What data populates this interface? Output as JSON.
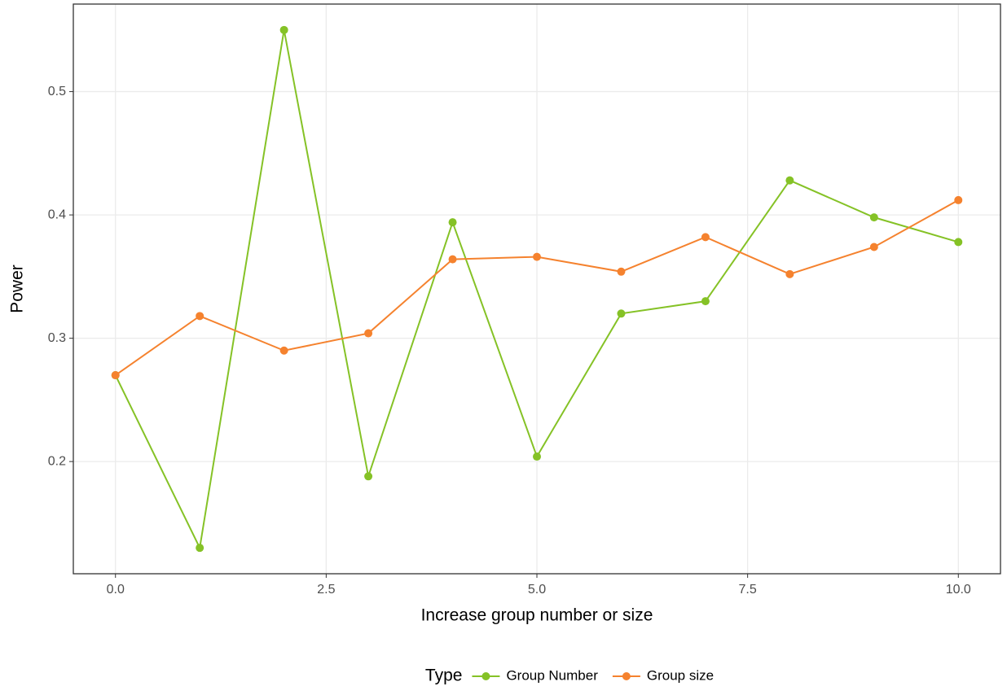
{
  "chart_data": {
    "type": "line",
    "x_label": "Increase group number or size",
    "y_label": "Power",
    "legend_title": "Type",
    "legend_position": "bottom",
    "grid": true,
    "x": [
      0,
      1,
      2,
      3,
      4,
      5,
      6,
      7,
      8,
      9,
      10
    ],
    "series": [
      {
        "name": "Group Number",
        "color": "#85c226",
        "values": [
          0.27,
          0.13,
          0.55,
          0.188,
          0.394,
          0.204,
          0.32,
          0.33,
          0.428,
          0.398,
          0.378
        ]
      },
      {
        "name": "Group size",
        "color": "#f5822e",
        "values": [
          0.27,
          0.318,
          0.29,
          0.304,
          0.364,
          0.366,
          0.354,
          0.382,
          0.352,
          0.374,
          0.412
        ]
      }
    ],
    "xlim": [
      -0.5,
      10.5
    ],
    "xticks": [
      {
        "value": 0,
        "label": "0.0"
      },
      2.5,
      {
        "value": 5,
        "label": "5.0"
      },
      7.5,
      {
        "value": 10,
        "label": "10.0"
      }
    ],
    "ylim": [
      0.109,
      0.571
    ],
    "yticks": [
      0.2,
      0.3,
      0.4,
      0.5
    ]
  }
}
